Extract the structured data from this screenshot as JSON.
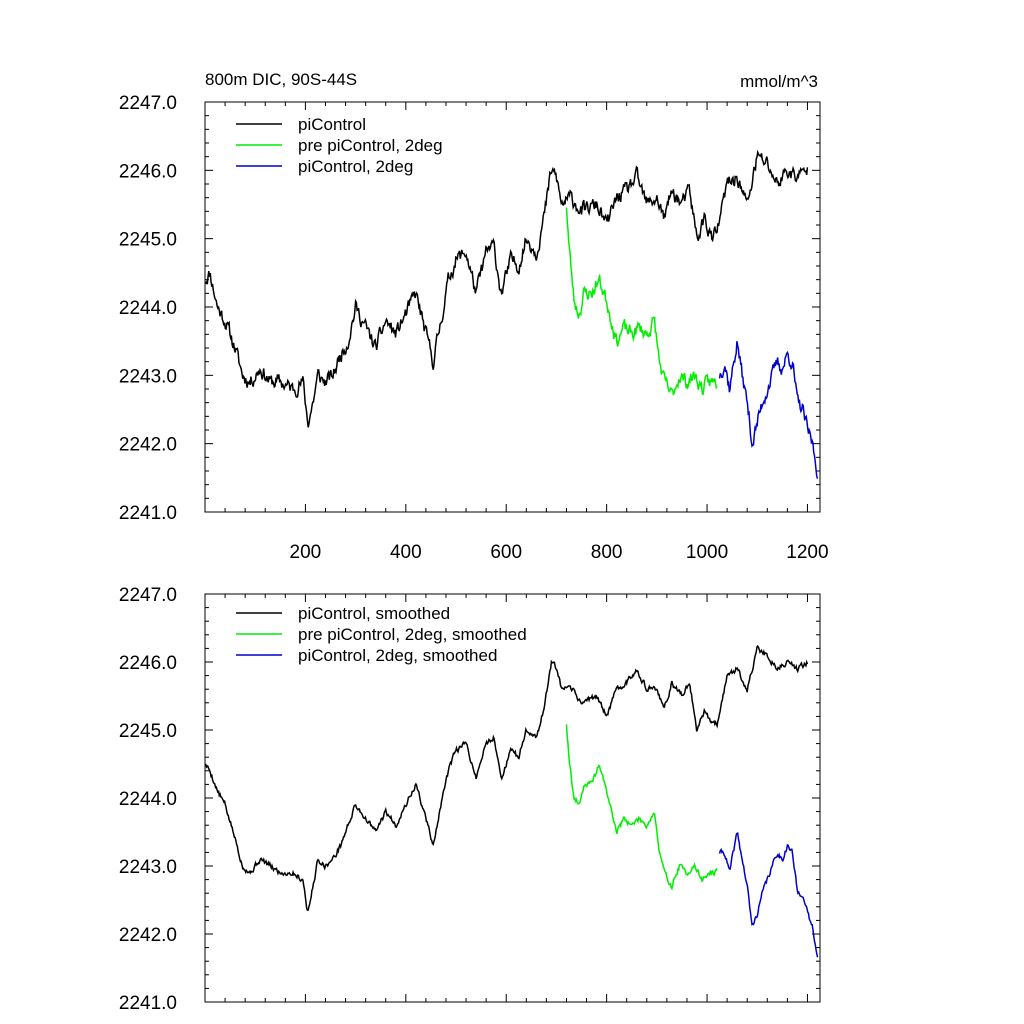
{
  "colors": {
    "black": "#000000",
    "green": "#00ee00",
    "blue": "#0000cc"
  },
  "chart_data": [
    {
      "type": "line",
      "title": "800m DIC, 90S-44S",
      "units": "mmol/m^3",
      "xlim": [
        0,
        1225
      ],
      "ylim": [
        2241.0,
        2247.0
      ],
      "xticks": [
        200,
        400,
        600,
        800,
        1000,
        1200
      ],
      "xtick_labels": [
        "200",
        "400",
        "600",
        "800",
        "1000",
        "1200"
      ],
      "yticks": [
        2241.0,
        2242.0,
        2243.0,
        2244.0,
        2245.0,
        2246.0,
        2247.0
      ],
      "ytick_labels": [
        "2241.0",
        "2242.0",
        "2243.0",
        "2244.0",
        "2245.0",
        "2246.0",
        "2247.0"
      ],
      "series": [
        {
          "name": "piControl",
          "color": "#000000",
          "noise": 0.18,
          "seed": 11,
          "x": [
            0,
            10,
            25,
            40,
            60,
            75,
            90,
            110,
            130,
            150,
            175,
            195,
            205,
            215,
            225,
            240,
            255,
            270,
            285,
            300,
            320,
            340,
            360,
            380,
            400,
            420,
            440,
            455,
            470,
            485,
            500,
            520,
            540,
            560,
            575,
            590,
            610,
            625,
            640,
            660,
            675,
            690,
            700,
            710,
            730,
            750,
            780,
            800,
            820,
            840,
            860,
            880,
            900,
            915,
            930,
            950,
            965,
            980,
            995,
            1010,
            1020,
            1040,
            1060,
            1080,
            1100,
            1120,
            1140,
            1160,
            1180,
            1200
          ],
          "y": [
            2244.4,
            2244.5,
            2244.0,
            2243.8,
            2243.4,
            2243.0,
            2242.9,
            2243.1,
            2242.9,
            2242.9,
            2242.8,
            2242.9,
            2242.3,
            2242.6,
            2243.0,
            2242.9,
            2243.0,
            2243.3,
            2243.5,
            2244.0,
            2243.7,
            2243.4,
            2243.8,
            2243.6,
            2243.9,
            2244.2,
            2243.6,
            2243.2,
            2243.8,
            2244.4,
            2244.7,
            2244.8,
            2244.2,
            2244.8,
            2244.9,
            2244.2,
            2244.7,
            2244.6,
            2245.0,
            2244.8,
            2245.3,
            2246.0,
            2245.9,
            2245.5,
            2245.6,
            2245.4,
            2245.5,
            2245.2,
            2245.6,
            2245.7,
            2245.9,
            2245.5,
            2245.6,
            2245.3,
            2245.7,
            2245.5,
            2245.7,
            2245.0,
            2245.3,
            2245.0,
            2245.1,
            2245.8,
            2245.9,
            2245.5,
            2246.2,
            2246.1,
            2245.8,
            2246.0,
            2245.9,
            2246.0
          ]
        },
        {
          "name": "pre piControl, 2deg",
          "color": "#00ee00",
          "noise": 0.18,
          "seed": 23,
          "x": [
            720,
            725,
            735,
            745,
            755,
            770,
            785,
            800,
            810,
            820,
            835,
            850,
            865,
            880,
            895,
            905,
            915,
            930,
            945,
            960,
            975,
            990,
            1005,
            1020
          ],
          "y": [
            2245.5,
            2244.9,
            2244.1,
            2243.9,
            2244.2,
            2244.2,
            2244.4,
            2244.1,
            2243.8,
            2243.5,
            2243.7,
            2243.6,
            2243.7,
            2243.6,
            2243.8,
            2243.2,
            2242.9,
            2242.7,
            2243.0,
            2242.9,
            2243.0,
            2242.8,
            2242.9,
            2242.9
          ]
        },
        {
          "name": "piControl, 2deg",
          "color": "#0000cc",
          "noise": 0.18,
          "seed": 37,
          "x": [
            1025,
            1035,
            1045,
            1060,
            1070,
            1080,
            1090,
            1100,
            1110,
            1120,
            1130,
            1140,
            1150,
            1160,
            1170,
            1180,
            1190,
            1200,
            1210,
            1220
          ],
          "y": [
            2243.0,
            2243.2,
            2242.8,
            2243.5,
            2243.0,
            2242.6,
            2242.0,
            2242.3,
            2242.6,
            2242.8,
            2243.0,
            2243.2,
            2243.1,
            2243.3,
            2243.2,
            2242.6,
            2242.5,
            2242.2,
            2242.0,
            2241.6
          ]
        }
      ]
    },
    {
      "type": "line",
      "title": "",
      "units": "",
      "xlim": [
        0,
        1225
      ],
      "ylim": [
        2241.0,
        2247.0
      ],
      "xticks": [
        200,
        400,
        600,
        800,
        1000,
        1200
      ],
      "xtick_labels": [],
      "yticks": [
        2241.0,
        2242.0,
        2243.0,
        2244.0,
        2245.0,
        2246.0,
        2247.0
      ],
      "ytick_labels": [
        "2241.0",
        "2242.0",
        "2243.0",
        "2244.0",
        "2245.0",
        "2246.0",
        "2247.0"
      ],
      "series": [
        {
          "name": "piControl, smoothed",
          "color": "#000000",
          "noise": 0.07,
          "seed": 5,
          "x": [
            0,
            10,
            25,
            40,
            60,
            75,
            90,
            110,
            130,
            150,
            175,
            195,
            205,
            215,
            225,
            240,
            255,
            270,
            285,
            300,
            320,
            340,
            360,
            380,
            400,
            420,
            440,
            455,
            470,
            485,
            500,
            520,
            540,
            560,
            575,
            590,
            610,
            625,
            640,
            660,
            675,
            690,
            700,
            710,
            730,
            750,
            780,
            800,
            820,
            840,
            860,
            880,
            900,
            915,
            930,
            950,
            965,
            980,
            995,
            1010,
            1020,
            1040,
            1060,
            1080,
            1100,
            1120,
            1140,
            1160,
            1180,
            1200
          ],
          "y": [
            2244.5,
            2244.4,
            2244.1,
            2243.9,
            2243.4,
            2243.0,
            2242.9,
            2243.1,
            2243.0,
            2242.9,
            2242.9,
            2242.8,
            2242.3,
            2242.7,
            2243.1,
            2243.0,
            2243.1,
            2243.3,
            2243.6,
            2243.9,
            2243.7,
            2243.5,
            2243.8,
            2243.6,
            2243.9,
            2244.2,
            2243.7,
            2243.3,
            2243.9,
            2244.4,
            2244.7,
            2244.8,
            2244.3,
            2244.8,
            2244.9,
            2244.3,
            2244.7,
            2244.6,
            2245.0,
            2244.9,
            2245.3,
            2246.0,
            2245.9,
            2245.6,
            2245.6,
            2245.4,
            2245.5,
            2245.2,
            2245.6,
            2245.7,
            2245.9,
            2245.6,
            2245.6,
            2245.3,
            2245.7,
            2245.5,
            2245.7,
            2245.0,
            2245.3,
            2245.1,
            2245.1,
            2245.8,
            2245.9,
            2245.6,
            2246.2,
            2246.1,
            2245.9,
            2246.0,
            2245.9,
            2246.0
          ]
        },
        {
          "name": "pre piControl, 2deg, smoothed",
          "color": "#00ee00",
          "noise": 0.07,
          "seed": 19,
          "x": [
            720,
            725,
            735,
            745,
            755,
            770,
            785,
            800,
            810,
            820,
            835,
            850,
            865,
            880,
            895,
            905,
            915,
            930,
            945,
            960,
            975,
            990,
            1005,
            1020
          ],
          "y": [
            2245.1,
            2244.6,
            2244.0,
            2243.9,
            2244.2,
            2244.2,
            2244.5,
            2244.1,
            2243.8,
            2243.5,
            2243.7,
            2243.6,
            2243.7,
            2243.6,
            2243.8,
            2243.2,
            2242.9,
            2242.7,
            2243.0,
            2242.9,
            2243.0,
            2242.8,
            2242.9,
            2242.9
          ]
        },
        {
          "name": "piControl, 2deg, smoothed",
          "color": "#0000cc",
          "noise": 0.07,
          "seed": 41,
          "x": [
            1025,
            1035,
            1045,
            1060,
            1070,
            1080,
            1090,
            1100,
            1110,
            1120,
            1130,
            1140,
            1150,
            1160,
            1170,
            1180,
            1190,
            1200,
            1210,
            1220
          ],
          "y": [
            2243.2,
            2243.2,
            2242.9,
            2243.5,
            2243.1,
            2242.7,
            2242.1,
            2242.3,
            2242.6,
            2242.8,
            2243.0,
            2243.2,
            2243.1,
            2243.3,
            2243.2,
            2242.6,
            2242.6,
            2242.3,
            2242.1,
            2241.7
          ]
        }
      ]
    }
  ]
}
